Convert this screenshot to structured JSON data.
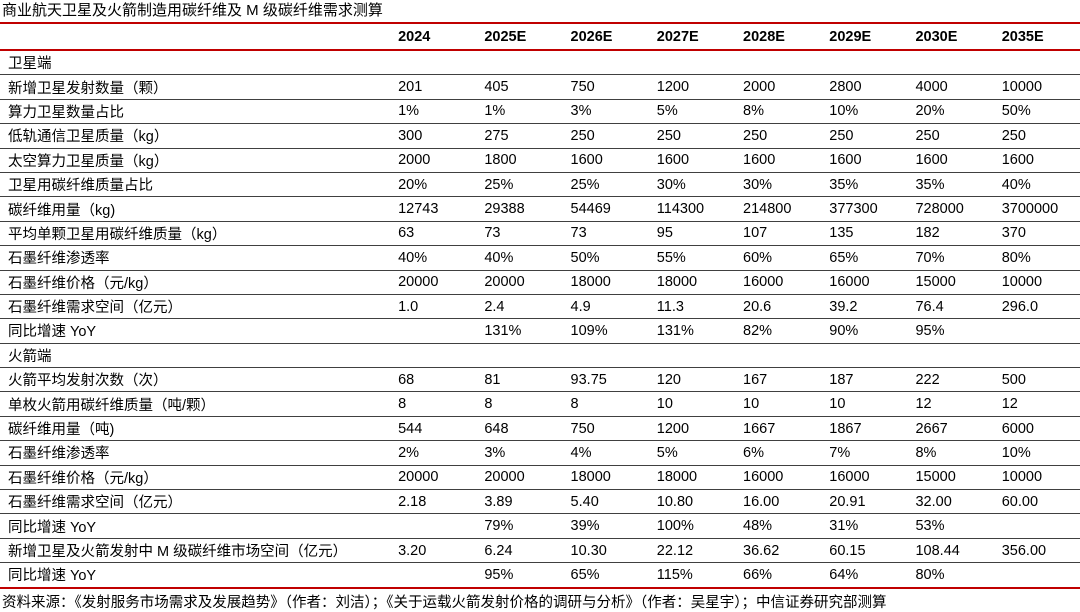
{
  "title": "商业航天卫星及火箭制造用碳纤维及 M 级碳纤维需求测算",
  "footer": "资料来源：《发射服务市场需求及发展趋势》（作者：刘洁）；《关于运载火箭发射价格的调研与分析》（作者：吴星宇）；中信证券研究部测算",
  "colors": {
    "accent_red": "#c00000",
    "row_line": "#404040",
    "text": "#000000",
    "background": "#ffffff"
  },
  "chart_data": {
    "type": "table",
    "columns": [
      "",
      "2024",
      "2025E",
      "2026E",
      "2027E",
      "2028E",
      "2029E",
      "2030E",
      "2035E"
    ],
    "rows": [
      {
        "label": "卫星端",
        "section": true,
        "values": [
          "",
          "",
          "",
          "",
          "",
          "",
          "",
          ""
        ]
      },
      {
        "label": "新增卫星发射数量（颗）",
        "section": false,
        "values": [
          "201",
          "405",
          "750",
          "1200",
          "2000",
          "2800",
          "4000",
          "10000"
        ]
      },
      {
        "label": "算力卫星数量占比",
        "section": false,
        "values": [
          "1%",
          "1%",
          "3%",
          "5%",
          "8%",
          "10%",
          "20%",
          "50%"
        ]
      },
      {
        "label": "低轨通信卫星质量（kg）",
        "section": false,
        "values": [
          "300",
          "275",
          "250",
          "250",
          "250",
          "250",
          "250",
          "250"
        ]
      },
      {
        "label": "太空算力卫星质量（kg）",
        "section": false,
        "values": [
          "2000",
          "1800",
          "1600",
          "1600",
          "1600",
          "1600",
          "1600",
          "1600"
        ]
      },
      {
        "label": "卫星用碳纤维质量占比",
        "section": false,
        "values": [
          "20%",
          "25%",
          "25%",
          "30%",
          "30%",
          "35%",
          "35%",
          "40%"
        ]
      },
      {
        "label": "碳纤维用量（kg)",
        "section": false,
        "values": [
          "12743",
          "29388",
          "54469",
          "114300",
          "214800",
          "377300",
          "728000",
          "3700000"
        ]
      },
      {
        "label": "平均单颗卫星用碳纤维质量（kg）",
        "section": false,
        "values": [
          "63",
          "73",
          "73",
          "95",
          "107",
          "135",
          "182",
          "370"
        ]
      },
      {
        "label": "石墨纤维渗透率",
        "section": false,
        "values": [
          "40%",
          "40%",
          "50%",
          "55%",
          "60%",
          "65%",
          "70%",
          "80%"
        ]
      },
      {
        "label": "石墨纤维价格（元/kg）",
        "section": false,
        "values": [
          "20000",
          "20000",
          "18000",
          "18000",
          "16000",
          "16000",
          "15000",
          "10000"
        ]
      },
      {
        "label": "石墨纤维需求空间（亿元）",
        "section": false,
        "values": [
          "1.0",
          "2.4",
          "4.9",
          "11.3",
          "20.6",
          "39.2",
          "76.4",
          "296.0"
        ]
      },
      {
        "label": "同比增速 YoY",
        "section": false,
        "values": [
          "",
          "131%",
          "109%",
          "131%",
          "82%",
          "90%",
          "95%",
          ""
        ]
      },
      {
        "label": "火箭端",
        "section": true,
        "values": [
          "",
          "",
          "",
          "",
          "",
          "",
          "",
          ""
        ]
      },
      {
        "label": "火箭平均发射次数（次）",
        "section": false,
        "values": [
          "68",
          "81",
          "93.75",
          "120",
          "167",
          "187",
          "222",
          "500"
        ]
      },
      {
        "label": "单枚火箭用碳纤维质量（吨/颗）",
        "section": false,
        "values": [
          "8",
          "8",
          "8",
          "10",
          "10",
          "10",
          "12",
          "12"
        ]
      },
      {
        "label": "碳纤维用量（吨)",
        "section": false,
        "values": [
          "544",
          "648",
          "750",
          "1200",
          "1667",
          "1867",
          "2667",
          "6000"
        ]
      },
      {
        "label": "石墨纤维渗透率",
        "section": false,
        "values": [
          "2%",
          "3%",
          "4%",
          "5%",
          "6%",
          "7%",
          "8%",
          "10%"
        ]
      },
      {
        "label": "石墨纤维价格（元/kg）",
        "section": false,
        "values": [
          "20000",
          "20000",
          "18000",
          "18000",
          "16000",
          "16000",
          "15000",
          "10000"
        ]
      },
      {
        "label": "石墨纤维需求空间（亿元）",
        "section": false,
        "values": [
          "2.18",
          "3.89",
          "5.40",
          "10.80",
          "16.00",
          "20.91",
          "32.00",
          "60.00"
        ]
      },
      {
        "label": "同比增速 YoY",
        "section": false,
        "values": [
          "",
          "79%",
          "39%",
          "100%",
          "48%",
          "31%",
          "53%",
          ""
        ]
      },
      {
        "label": "新增卫星及火箭发射中 M 级碳纤维市场空间（亿元）",
        "section": false,
        "values": [
          "3.20",
          "6.24",
          "10.30",
          "22.12",
          "36.62",
          "60.15",
          "108.44",
          "356.00"
        ]
      },
      {
        "label": "同比增速 YoY",
        "section": false,
        "values": [
          "",
          "95%",
          "65%",
          "115%",
          "66%",
          "64%",
          "80%",
          ""
        ]
      }
    ]
  }
}
